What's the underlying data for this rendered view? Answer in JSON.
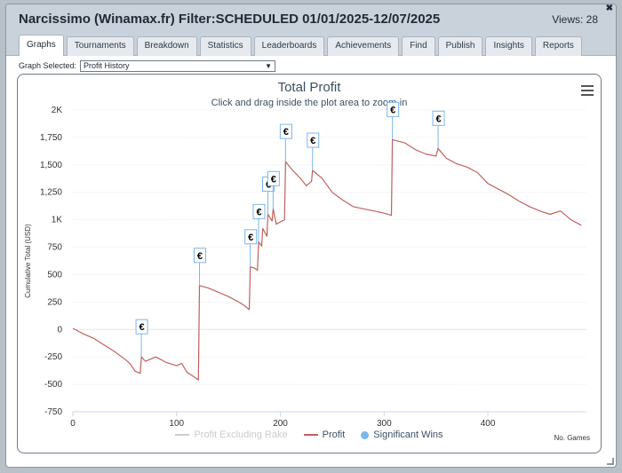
{
  "window": {
    "title": "Narcissimo (Winamax.fr) Filter:SCHEDULED 01/01/2025-12/07/2025",
    "views": "Views: 28",
    "close_label": "✖"
  },
  "tabs": [
    {
      "label": "Graphs",
      "active": true
    },
    {
      "label": "Tournaments",
      "active": false
    },
    {
      "label": "Breakdown",
      "active": false
    },
    {
      "label": "Statistics",
      "active": false
    },
    {
      "label": "Leaderboards",
      "active": false
    },
    {
      "label": "Achievements",
      "active": false
    },
    {
      "label": "Find",
      "active": false
    },
    {
      "label": "Publish",
      "active": false
    },
    {
      "label": "Insights",
      "active": false
    },
    {
      "label": "Reports",
      "active": false
    }
  ],
  "graph_select": {
    "label": "Graph Selected:",
    "value": "Profit History"
  },
  "colors": {
    "profit_line": "#c0605f",
    "excluding_rake_line": "#cccccc",
    "significant_dot": "#7cb5ec",
    "grid": "#e6e6e6",
    "marker_border": "#7cb5ec"
  },
  "icons": {
    "menu": "hamburger-icon",
    "euro_marker": "€"
  },
  "chart_data": {
    "type": "line",
    "title": "Total Profit",
    "subtitle": "Click and drag inside the plot area to zoom-in",
    "xlabel": "No. Games",
    "ylabel": "Cumulative Total (USD)",
    "xlim": [
      0,
      495
    ],
    "ylim": [
      -750,
      2000
    ],
    "x_ticks": [
      0,
      100,
      200,
      300,
      400
    ],
    "y_ticks": [
      -750,
      -500,
      -250,
      0,
      250,
      500,
      750,
      1000,
      1250,
      1500,
      1750,
      2000
    ],
    "y_tick_labels": [
      "-750",
      "-500",
      "-250",
      "0",
      "250",
      "500",
      "750",
      "1K",
      "1,250",
      "1,500",
      "1,750",
      "2K"
    ],
    "legend": [
      {
        "name": "Profit Excluding Rake",
        "visible": false
      },
      {
        "name": "Profit",
        "visible": true
      },
      {
        "name": "Significant Wins",
        "visible": true
      }
    ],
    "series": [
      {
        "name": "Profit",
        "points": [
          [
            0,
            10
          ],
          [
            10,
            -40
          ],
          [
            20,
            -80
          ],
          [
            30,
            -140
          ],
          [
            40,
            -200
          ],
          [
            50,
            -270
          ],
          [
            55,
            -310
          ],
          [
            60,
            -380
          ],
          [
            65,
            -400
          ],
          [
            66,
            -250
          ],
          [
            70,
            -290
          ],
          [
            80,
            -250
          ],
          [
            90,
            -300
          ],
          [
            100,
            -330
          ],
          [
            105,
            -310
          ],
          [
            110,
            -390
          ],
          [
            115,
            -420
          ],
          [
            121,
            -460
          ],
          [
            122,
            400
          ],
          [
            130,
            380
          ],
          [
            140,
            340
          ],
          [
            150,
            300
          ],
          [
            160,
            250
          ],
          [
            165,
            220
          ],
          [
            170,
            180
          ],
          [
            171,
            570
          ],
          [
            175,
            560
          ],
          [
            178,
            540
          ],
          [
            179,
            800
          ],
          [
            182,
            760
          ],
          [
            183,
            920
          ],
          [
            187,
            850
          ],
          [
            188,
            1050
          ],
          [
            192,
            990
          ],
          [
            193,
            1100
          ],
          [
            196,
            960
          ],
          [
            200,
            980
          ],
          [
            204,
            1000
          ],
          [
            205,
            1530
          ],
          [
            210,
            1470
          ],
          [
            220,
            1370
          ],
          [
            225,
            1310
          ],
          [
            230,
            1350
          ],
          [
            231,
            1450
          ],
          [
            240,
            1380
          ],
          [
            250,
            1250
          ],
          [
            260,
            1180
          ],
          [
            270,
            1120
          ],
          [
            280,
            1100
          ],
          [
            290,
            1080
          ],
          [
            300,
            1060
          ],
          [
            307,
            1040
          ],
          [
            308,
            1730
          ],
          [
            320,
            1700
          ],
          [
            330,
            1640
          ],
          [
            340,
            1600
          ],
          [
            350,
            1580
          ],
          [
            352,
            1650
          ],
          [
            360,
            1560
          ],
          [
            370,
            1510
          ],
          [
            380,
            1480
          ],
          [
            390,
            1430
          ],
          [
            400,
            1330
          ],
          [
            410,
            1280
          ],
          [
            420,
            1230
          ],
          [
            430,
            1170
          ],
          [
            440,
            1120
          ],
          [
            450,
            1080
          ],
          [
            460,
            1050
          ],
          [
            470,
            1080
          ],
          [
            480,
            1000
          ],
          [
            490,
            950
          ]
        ]
      }
    ],
    "significant_wins": [
      {
        "x": 66,
        "y": -250,
        "label": "€"
      },
      {
        "x": 122,
        "y": 400,
        "label": "€"
      },
      {
        "x": 171,
        "y": 570,
        "label": "€"
      },
      {
        "x": 179,
        "y": 800,
        "label": "€"
      },
      {
        "x": 188,
        "y": 1050,
        "label": "€"
      },
      {
        "x": 193,
        "y": 1100,
        "label": "€"
      },
      {
        "x": 205,
        "y": 1530,
        "label": "€"
      },
      {
        "x": 231,
        "y": 1450,
        "label": "€"
      },
      {
        "x": 308,
        "y": 1730,
        "label": "€"
      },
      {
        "x": 352,
        "y": 1650,
        "label": "€"
      }
    ]
  }
}
